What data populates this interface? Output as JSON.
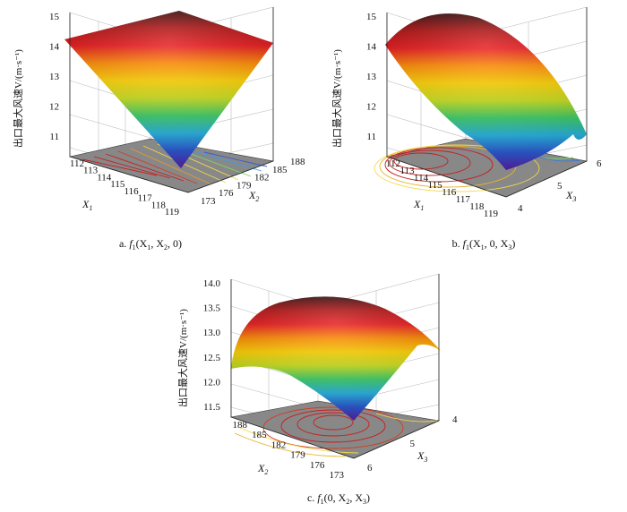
{
  "colors": {
    "colormap": [
      "#5a1fa6",
      "#2e5bd6",
      "#29b7e6",
      "#3fd06a",
      "#c9e01e",
      "#ffd200",
      "#ff8a00",
      "#e8171b",
      "#b01010",
      "#3a0a0a"
    ],
    "floor": "#888888",
    "contour_palette": [
      "#c81e1e",
      "#e8b42a",
      "#f2d94a"
    ]
  },
  "chart_data": [
    {
      "type": "surface",
      "zlabel": "出口最大风速V/(m·s⁻¹)",
      "xlabel": "X",
      "xlabel_sub": "1",
      "ylabel": "X",
      "ylabel_sub": "2",
      "x_ticks": [
        "112",
        "113",
        "114",
        "115",
        "116",
        "117",
        "118",
        "119"
      ],
      "y_ticks": [
        "173",
        "176",
        "179",
        "182",
        "185",
        "188"
      ],
      "z_ticks": [
        "11",
        "12",
        "13",
        "14",
        "15"
      ],
      "xlim": [
        112,
        119
      ],
      "ylim": [
        173,
        188
      ],
      "zlim": [
        10.2,
        15
      ],
      "surface_corners": {
        "x_low_y_low": 14.3,
        "x_low_y_high": 14.9,
        "x_high_y_low": 10.5,
        "x_high_y_high": 11.1
      },
      "caption": {
        "prefix": "a. ",
        "f": "f",
        "sub": "1",
        "args": "(X",
        "a1": "1",
        "mid": ", X",
        "a2": "2",
        "end": ", 0)"
      }
    },
    {
      "type": "surface",
      "zlabel": "出口最大风速V/(m·s⁻¹)",
      "xlabel": "X",
      "xlabel_sub": "1",
      "ylabel": "X",
      "ylabel_sub": "3",
      "x_ticks": [
        "112",
        "113",
        "114",
        "115",
        "116",
        "117",
        "118",
        "119"
      ],
      "y_ticks": [
        "4",
        "5",
        "6"
      ],
      "z_ticks": [
        "11",
        "12",
        "13",
        "14",
        "15"
      ],
      "xlim": [
        112,
        119
      ],
      "ylim": [
        4,
        6
      ],
      "zlim": [
        10.2,
        15
      ],
      "surface_corners": {
        "x_low_y_low": 13.9,
        "x_low_y_high": 13.9,
        "x_high_y_low": 10.2,
        "x_high_y_high": 10.2,
        "peak": 14.9
      },
      "caption": {
        "prefix": "b. ",
        "f": "f",
        "sub": "1",
        "args": "(X",
        "a1": "1",
        "mid": ", 0, X",
        "a2": "3",
        "end": ")"
      }
    },
    {
      "type": "surface",
      "zlabel": "出口最大风速V/(m·s⁻¹)",
      "xlabel": "X",
      "xlabel_sub": "2",
      "ylabel": "X",
      "ylabel_sub": "3",
      "x_ticks": [
        "173",
        "176",
        "179",
        "182",
        "185",
        "188"
      ],
      "y_ticks": [
        "4",
        "5",
        "6"
      ],
      "z_ticks": [
        "11.5",
        "12.0",
        "12.5",
        "13.0",
        "13.5",
        "14.0"
      ],
      "xlim": [
        173,
        188
      ],
      "ylim": [
        4,
        6
      ],
      "zlim": [
        11.3,
        14.0
      ],
      "surface_corners": {
        "x_low_y_low": 11.5,
        "x_low_y_high": 12.4,
        "x_high_y_low": 12.3,
        "x_high_y_high": 12.5,
        "peak": 13.9
      },
      "caption": {
        "prefix": "c. ",
        "f": "f",
        "sub": "1",
        "args": "(0, X",
        "a1": "2",
        "mid": ", X",
        "a2": "3",
        "end": ")"
      }
    }
  ]
}
